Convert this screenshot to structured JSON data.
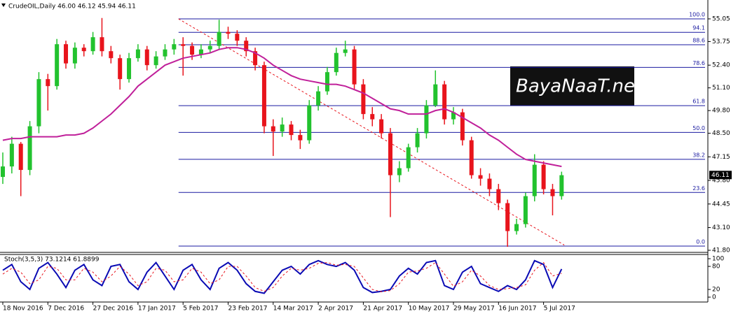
{
  "chart_data": [
    {
      "type": "candlestick",
      "title": "CrudeOIL,Daily  46.00 46.12 45.94 46.11",
      "categories": [
        "18 Nov 2016",
        null,
        null,
        null,
        null,
        "7 Dec 2016",
        null,
        null,
        null,
        null,
        "27 Dec 2016",
        null,
        null,
        null,
        null,
        "17 Jan 2017",
        null,
        null,
        null,
        null,
        "5 Feb 2017",
        null,
        null,
        null,
        null,
        "23 Feb 2017",
        null,
        null,
        null,
        null,
        "14 Mar 2017",
        null,
        null,
        null,
        null,
        "2 Apr 2017",
        null,
        null,
        null,
        null,
        "21 Apr 2017",
        null,
        null,
        null,
        null,
        "10 May 2017",
        null,
        null,
        null,
        null,
        "29 May 2017",
        null,
        null,
        null,
        null,
        "16 Jun 2017",
        null,
        null,
        null,
        null,
        "5 Jul 2017",
        null,
        null
      ],
      "open": [
        46.0,
        46.6,
        47.9,
        46.4,
        48.9,
        51.6,
        51.2,
        53.6,
        52.5,
        53.4,
        53.2,
        54.0,
        53.2,
        52.8,
        51.6,
        52.8,
        53.3,
        52.4,
        52.9,
        53.3,
        53.6,
        53.5,
        53.0,
        53.3,
        53.5,
        54.3,
        54.2,
        53.8,
        53.2,
        52.4,
        48.9,
        48.6,
        49.0,
        48.4,
        48.1,
        50.1,
        50.9,
        52.0,
        53.1,
        53.3,
        51.3,
        49.6,
        49.3,
        48.5,
        46.1,
        46.5,
        47.7,
        48.5,
        50.1,
        51.3,
        49.3,
        49.7,
        48.1,
        46.1,
        45.9,
        45.3,
        44.5,
        42.9,
        43.3,
        44.9,
        46.7,
        45.3,
        44.9
      ],
      "high": [
        47.4,
        48.3,
        48.0,
        49.2,
        52.0,
        51.9,
        53.9,
        53.8,
        53.7,
        53.6,
        54.3,
        55.1,
        53.5,
        53.0,
        53.1,
        53.6,
        53.5,
        53.2,
        53.6,
        53.9,
        54.0,
        53.7,
        53.6,
        53.8,
        55.0,
        54.6,
        54.4,
        54.0,
        53.4,
        52.6,
        49.3,
        49.4,
        49.2,
        48.7,
        50.4,
        51.2,
        52.3,
        53.4,
        53.8,
        53.5,
        51.6,
        50.0,
        49.6,
        48.8,
        46.9,
        47.9,
        48.8,
        50.4,
        52.1,
        51.5,
        50.0,
        49.9,
        48.3,
        46.5,
        46.2,
        45.6,
        44.7,
        43.6,
        45.1,
        47.3,
        46.9,
        45.6,
        46.3
      ],
      "low": [
        45.6,
        46.2,
        44.9,
        46.1,
        48.5,
        49.8,
        51.0,
        52.2,
        52.2,
        52.9,
        53.0,
        52.9,
        52.5,
        51.0,
        51.4,
        52.6,
        52.1,
        52.2,
        52.7,
        53.0,
        51.8,
        52.7,
        52.8,
        53.1,
        53.3,
        53.9,
        53.5,
        52.9,
        52.1,
        48.5,
        47.2,
        48.3,
        48.1,
        47.6,
        47.9,
        49.8,
        50.7,
        51.8,
        52.9,
        51.0,
        49.3,
        48.9,
        48.2,
        43.7,
        45.7,
        46.3,
        47.4,
        48.2,
        50.0,
        49.0,
        49.0,
        47.8,
        45.9,
        45.5,
        44.9,
        44.1,
        42.0,
        42.7,
        43.1,
        44.6,
        45.0,
        43.8,
        44.7
      ],
      "close": [
        46.6,
        47.9,
        46.4,
        48.9,
        51.6,
        51.2,
        53.6,
        52.5,
        53.4,
        53.2,
        54.0,
        53.2,
        52.8,
        51.6,
        52.8,
        53.3,
        52.4,
        52.9,
        53.3,
        53.6,
        53.5,
        53.0,
        53.3,
        53.5,
        54.3,
        54.2,
        53.8,
        53.2,
        52.4,
        48.9,
        48.6,
        49.0,
        48.4,
        48.1,
        50.1,
        50.9,
        52.0,
        53.1,
        53.3,
        51.3,
        49.6,
        49.3,
        48.5,
        46.1,
        46.5,
        47.7,
        48.5,
        50.1,
        51.3,
        49.3,
        49.7,
        48.1,
        46.1,
        45.9,
        45.3,
        44.5,
        42.9,
        43.3,
        44.9,
        46.7,
        45.3,
        44.9,
        46.1
      ],
      "up_color": "#22c22e",
      "down_color": "#e8141c",
      "ma": {
        "color": "#c0209a",
        "values": [
          48.1,
          48.2,
          48.2,
          48.3,
          48.3,
          48.3,
          48.3,
          48.4,
          48.4,
          48.5,
          48.8,
          49.2,
          49.6,
          50.1,
          50.6,
          51.2,
          51.6,
          52.0,
          52.4,
          52.6,
          52.8,
          52.9,
          53.0,
          53.1,
          53.3,
          53.4,
          53.4,
          53.3,
          53.1,
          52.8,
          52.4,
          52.1,
          51.8,
          51.6,
          51.5,
          51.4,
          51.3,
          51.3,
          51.2,
          51.0,
          50.8,
          50.5,
          50.2,
          49.9,
          49.8,
          49.6,
          49.6,
          49.6,
          49.8,
          49.9,
          49.7,
          49.4,
          49.1,
          48.8,
          48.4,
          48.1,
          47.7,
          47.3,
          47.0,
          46.9,
          46.8,
          46.7,
          46.6
        ]
      },
      "trendline": {
        "color": "#e8141c",
        "x": [
          19.5,
          62.3
        ],
        "y": [
          55.05,
          42.1
        ]
      },
      "fib": {
        "color": "#1a1aa0",
        "x0": 19.5,
        "levels": [
          {
            "label": "100.0",
            "price": 55.05
          },
          {
            "label": "94.1",
            "price": 54.28
          },
          {
            "label": "88.6",
            "price": 53.57
          },
          {
            "label": "78.6",
            "price": 52.27
          },
          {
            "label": "61.8",
            "price": 50.08
          },
          {
            "label": "50.0",
            "price": 48.55
          },
          {
            "label": "38.2",
            "price": 47.01
          },
          {
            "label": "23.6",
            "price": 45.11
          },
          {
            "label": "0.0",
            "price": 42.04
          }
        ]
      },
      "last_price": 46.11,
      "ylim": [
        41.72,
        56.13
      ],
      "yticks": [
        55.05,
        53.75,
        {
          "value": 52.4,
          "label": "52.40"
        },
        {
          "value": 51.1,
          "label": "51.10"
        },
        {
          "value": 49.8,
          "label": "49.80"
        },
        {
          "value": 48.5,
          "label": "48.50"
        },
        47.15,
        {
          "value": 45.8,
          "label": "45.80"
        },
        44.45,
        {
          "value": 43.1,
          "label": "43.10"
        },
        {
          "value": 41.8,
          "label": "41.80"
        }
      ],
      "watermark": "BayaNaaT.ne"
    },
    {
      "type": "line",
      "title": "Stoch(3,5,3) 73.1214 61.8899",
      "series": [
        {
          "color": "#0a0ab4",
          "values": [
            70,
            85,
            40,
            20,
            75,
            90,
            60,
            25,
            70,
            85,
            45,
            30,
            80,
            85,
            40,
            20,
            65,
            90,
            55,
            20,
            70,
            85,
            45,
            20,
            75,
            90,
            70,
            35,
            15,
            10,
            40,
            70,
            80,
            60,
            85,
            95,
            85,
            80,
            90,
            70,
            25,
            12,
            15,
            20,
            55,
            75,
            60,
            90,
            95,
            30,
            20,
            65,
            80,
            35,
            25,
            15,
            30,
            20,
            45,
            95,
            85,
            25,
            73.1214
          ]
        },
        {
          "color": "#e8141c",
          "dashed": true,
          "values": [
            60,
            75,
            65,
            35,
            45,
            80,
            75,
            45,
            45,
            75,
            65,
            40,
            55,
            80,
            60,
            30,
            40,
            75,
            70,
            40,
            45,
            75,
            65,
            35,
            45,
            80,
            80,
            55,
            25,
            15,
            25,
            55,
            75,
            70,
            75,
            88,
            90,
            83,
            85,
            80,
            50,
            20,
            14,
            17,
            35,
            65,
            68,
            75,
            90,
            60,
            28,
            40,
            70,
            55,
            30,
            20,
            22,
            25,
            32,
            70,
            90,
            55,
            61.8899
          ]
        }
      ],
      "ylim": [
        -12.7,
        111
      ],
      "yticks": [
        100,
        80,
        20,
        0
      ]
    }
  ]
}
